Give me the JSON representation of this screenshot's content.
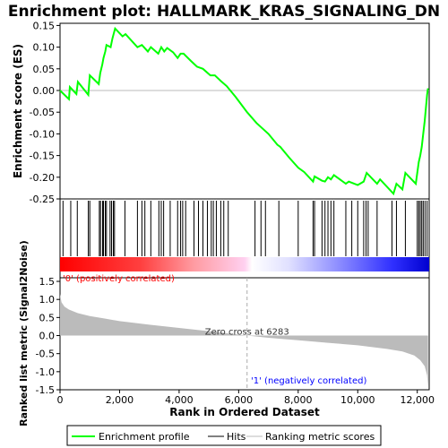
{
  "chart_data": {
    "type": "line",
    "title": "Enrichment plot: HALLMARK_KRAS_SIGNALING_DN",
    "x_range": [
      0,
      12400
    ],
    "x_ticks": [
      0,
      2000,
      4000,
      6000,
      8000,
      10000,
      12000
    ],
    "x_tick_labels": [
      "0",
      "2,000",
      "4,000",
      "6,000",
      "8,000",
      "10,000",
      "12,000"
    ],
    "xlabel": "Rank in Ordered Dataset",
    "es_panel": {
      "ylabel": "Enrichment score (ES)",
      "ylim": [
        -0.25,
        0.155
      ],
      "y_ticks": [
        -0.25,
        -0.2,
        -0.15,
        -0.1,
        -0.05,
        0.0,
        0.05,
        0.1,
        0.15
      ],
      "y_tick_labels": [
        "-0.25",
        "-0.20",
        "-0.15",
        "-0.10",
        "-0.05",
        "0.00",
        "0.05",
        "0.10",
        "0.15"
      ],
      "series": [
        {
          "name": "Enrichment profile",
          "color": "#00ff00",
          "points": [
            [
              0,
              0.0
            ],
            [
              300,
              -0.02
            ],
            [
              330,
              0.008
            ],
            [
              550,
              -0.008
            ],
            [
              600,
              0.02
            ],
            [
              950,
              -0.01
            ],
            [
              1000,
              0.035
            ],
            [
              1300,
              0.015
            ],
            [
              1350,
              0.04
            ],
            [
              1420,
              0.06
            ],
            [
              1460,
              0.075
            ],
            [
              1520,
              0.09
            ],
            [
              1560,
              0.105
            ],
            [
              1700,
              0.1
            ],
            [
              1760,
              0.12
            ],
            [
              1850,
              0.143
            ],
            [
              2100,
              0.125
            ],
            [
              2200,
              0.13
            ],
            [
              2600,
              0.1
            ],
            [
              2750,
              0.105
            ],
            [
              2950,
              0.09
            ],
            [
              3050,
              0.1
            ],
            [
              3300,
              0.085
            ],
            [
              3400,
              0.1
            ],
            [
              3500,
              0.09
            ],
            [
              3600,
              0.098
            ],
            [
              3800,
              0.088
            ],
            [
              3950,
              0.075
            ],
            [
              4050,
              0.085
            ],
            [
              4150,
              0.085
            ],
            [
              4400,
              0.068
            ],
            [
              4600,
              0.055
            ],
            [
              4800,
              0.05
            ],
            [
              5050,
              0.035
            ],
            [
              5200,
              0.035
            ],
            [
              5400,
              0.022
            ],
            [
              5600,
              0.01
            ],
            [
              5900,
              -0.015
            ],
            [
              6283,
              -0.05
            ],
            [
              6600,
              -0.075
            ],
            [
              7000,
              -0.1
            ],
            [
              7300,
              -0.125
            ],
            [
              7400,
              -0.13
            ],
            [
              7700,
              -0.155
            ],
            [
              8000,
              -0.178
            ],
            [
              8200,
              -0.188
            ],
            [
              8500,
              -0.21
            ],
            [
              8550,
              -0.198
            ],
            [
              8800,
              -0.208
            ],
            [
              8900,
              -0.21
            ],
            [
              9000,
              -0.2
            ],
            [
              9100,
              -0.205
            ],
            [
              9200,
              -0.195
            ],
            [
              9600,
              -0.215
            ],
            [
              9700,
              -0.21
            ],
            [
              10000,
              -0.218
            ],
            [
              10200,
              -0.21
            ],
            [
              10300,
              -0.19
            ],
            [
              10650,
              -0.215
            ],
            [
              10750,
              -0.205
            ],
            [
              11200,
              -0.238
            ],
            [
              11300,
              -0.215
            ],
            [
              11500,
              -0.228
            ],
            [
              11600,
              -0.19
            ],
            [
              11950,
              -0.215
            ],
            [
              12050,
              -0.165
            ],
            [
              12100,
              -0.15
            ],
            [
              12150,
              -0.13
            ],
            [
              12200,
              -0.1
            ],
            [
              12250,
              -0.07
            ],
            [
              12290,
              -0.04
            ],
            [
              12330,
              -0.01
            ],
            [
              12360,
              0.005
            ]
          ]
        }
      ]
    },
    "hits": [
      100,
      360,
      580,
      950,
      1000,
      1320,
      1360,
      1430,
      1460,
      1520,
      1560,
      1680,
      1730,
      1790,
      1830,
      2180,
      2600,
      2750,
      2850,
      3050,
      3320,
      3400,
      3480,
      3700,
      3950,
      4050,
      4120,
      4220,
      4500,
      4650,
      4800,
      4950,
      5080,
      5150,
      5250,
      5400,
      5500,
      5650,
      6550,
      6750,
      6900,
      7350,
      8000,
      8500,
      8550,
      8800,
      8900,
      9000,
      9100,
      9200,
      9600,
      9800,
      10000,
      10200,
      10280,
      10350,
      10650,
      11150,
      11300,
      11600,
      12000,
      12050,
      12100,
      12150,
      12200,
      12260,
      12330
    ],
    "metric_panel": {
      "ylabel": "Ranked list metric (Signal2Noise)",
      "ylim": [
        -1.5,
        1.6
      ],
      "y_ticks": [
        -1.5,
        -1.0,
        -0.5,
        0.0,
        0.5,
        1.0,
        1.5
      ],
      "y_tick_labels": [
        "-1.5",
        "-1.0",
        "-0.5",
        "0.0",
        "0.5",
        "1.0",
        "1.5"
      ],
      "zero_cross": 6283,
      "zero_cross_label": "Zero cross at 6283",
      "pos_label": "'0' (positively correlated)",
      "neg_label": "'1' (negatively correlated)",
      "curve": [
        [
          0,
          1.15
        ],
        [
          50,
          0.92
        ],
        [
          150,
          0.8
        ],
        [
          300,
          0.72
        ],
        [
          600,
          0.62
        ],
        [
          1000,
          0.54
        ],
        [
          1500,
          0.47
        ],
        [
          2000,
          0.4
        ],
        [
          3000,
          0.3
        ],
        [
          4000,
          0.21
        ],
        [
          5000,
          0.12
        ],
        [
          6283,
          0.0
        ],
        [
          7000,
          -0.06
        ],
        [
          8000,
          -0.13
        ],
        [
          9000,
          -0.2
        ],
        [
          10000,
          -0.27
        ],
        [
          11000,
          -0.37
        ],
        [
          11500,
          -0.44
        ],
        [
          11900,
          -0.55
        ],
        [
          12100,
          -0.68
        ],
        [
          12250,
          -0.85
        ],
        [
          12330,
          -1.1
        ],
        [
          12360,
          -1.42
        ]
      ]
    },
    "legend": {
      "items": [
        {
          "label": "Enrichment profile",
          "color": "#00ff00"
        },
        {
          "label": "Hits",
          "color": "#000000"
        },
        {
          "label": "Ranking metric scores",
          "color": "#bbbbbb"
        }
      ]
    }
  }
}
